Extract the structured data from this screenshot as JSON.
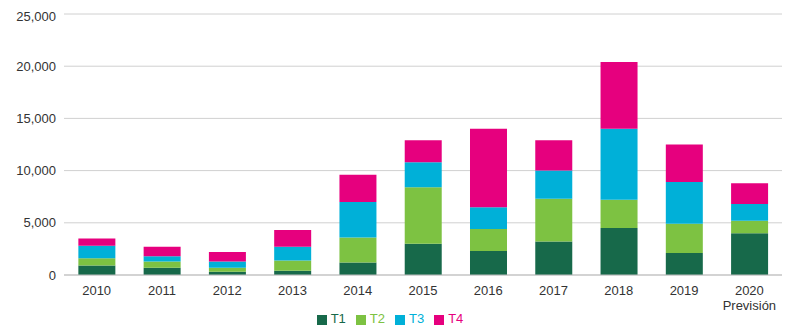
{
  "chart_data": {
    "type": "bar",
    "stacked": true,
    "grid": true,
    "legend": "bottom",
    "categories": [
      "2010",
      "2011",
      "2012",
      "2013",
      "2014",
      "2015",
      "2016",
      "2017",
      "2018",
      "2019",
      "2020\nPrevisión"
    ],
    "series": [
      {
        "name": "T1",
        "color": "#17694a",
        "values": [
          900,
          700,
          300,
          400,
          1200,
          3000,
          2300,
          3200,
          4500,
          2100,
          4000
        ]
      },
      {
        "name": "T2",
        "color": "#7dc242",
        "values": [
          700,
          600,
          400,
          1000,
          2400,
          5400,
          2100,
          4100,
          2700,
          2800,
          1200
        ]
      },
      {
        "name": "T3",
        "color": "#00b0d8",
        "values": [
          1200,
          500,
          600,
          1300,
          3400,
          2400,
          2100,
          2700,
          6800,
          4000,
          1600
        ]
      },
      {
        "name": "T4",
        "color": "#e6007e",
        "values": [
          700,
          900,
          900,
          1600,
          2600,
          2100,
          7500,
          2900,
          6400,
          3600,
          2000
        ]
      }
    ],
    "ylim": [
      0,
      25000
    ],
    "yticks": [
      0,
      {
        "value": 5000,
        "label": "5,000"
      },
      {
        "value": 10000,
        "label": "10,000"
      },
      {
        "value": 15000,
        "label": "15,000"
      },
      {
        "value": 20000,
        "label": "20,000"
      },
      {
        "value": 25000,
        "label": "25,000"
      }
    ]
  }
}
